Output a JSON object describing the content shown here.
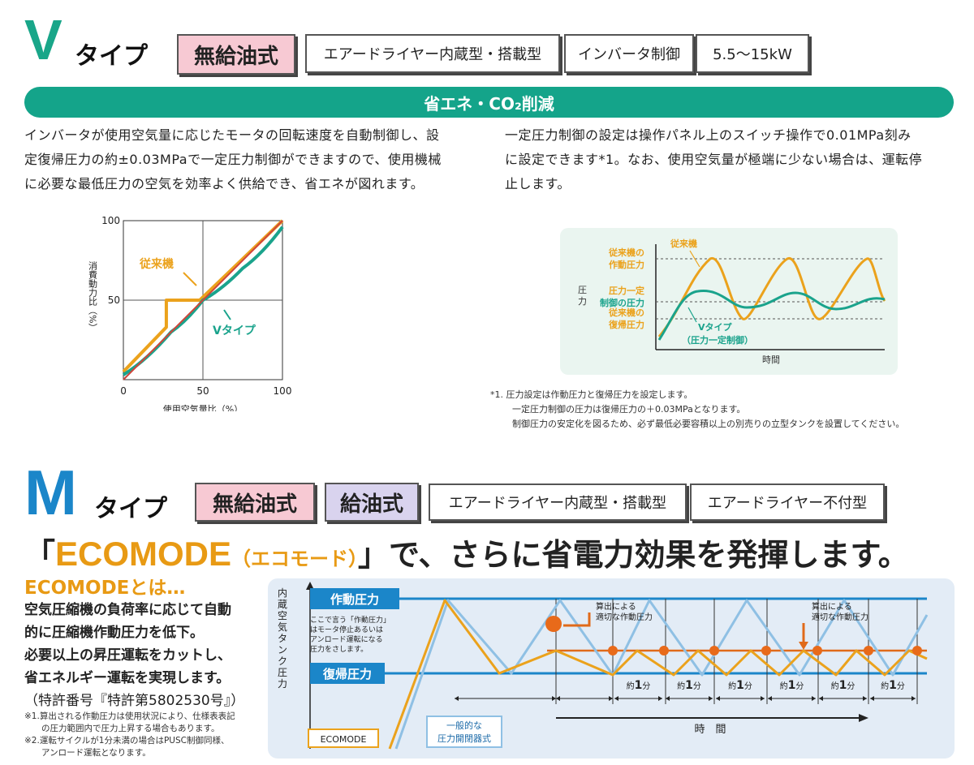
{
  "vtype": {
    "letter": "V",
    "suffix": "タイプ",
    "tags": [
      "無給油式",
      "エアードライヤー内蔵型・搭載型",
      "インバータ制御",
      "5.5〜15kW"
    ],
    "banner": "省エネ・CO₂削減",
    "para_left": [
      "インバータが使用空気量に応じたモータの回転速度を自動制御し、設",
      "定復帰圧力の約±0.03MPaで一定圧力制御ができますので、使用機械",
      "に必要な最低圧力の空気を効率よく供給でき、省エネが図れます。"
    ],
    "para_right": [
      "一定圧力制御の設定は操作パネル上のスイッチ操作で0.01MPa刻み",
      "に設定できます*1。なお、使用空気量が極端に少ない場合は、運転停",
      "止します。"
    ],
    "notes": [
      "*1. 圧力設定は作動圧力と復帰圧力を設定します。",
      "一定圧力制御の圧力は復帰圧力の＋0.03MPaとなります。",
      "制御圧力の安定化を図るため、必ず最低必要容積以上の別売りの立型タンクを設置してください。"
    ]
  },
  "chart_data": [
    {
      "type": "line",
      "xlabel": "使用空気量比（%）",
      "ylabel": "消費動力比（%）",
      "xlim": [
        0,
        100
      ],
      "ylim": [
        0,
        100
      ],
      "xticks": [
        "0",
        "50",
        "100"
      ],
      "yticks": [
        "100",
        "50"
      ],
      "series": [
        {
          "name": "従来機",
          "color": "#eba21c",
          "x": [
            0,
            27,
            27,
            48,
            100
          ],
          "y": [
            5,
            33,
            50,
            50,
            100
          ]
        },
        {
          "name": "Vタイプ",
          "color": "#1aa38c",
          "x": [
            0,
            30,
            50,
            75,
            100
          ],
          "y": [
            3,
            30,
            50,
            70,
            96
          ]
        },
        {
          "name": "",
          "color": "#d0453b",
          "x": [
            0,
            100
          ],
          "y": [
            0,
            100
          ]
        }
      ]
    },
    {
      "type": "line",
      "xlabel": "時間",
      "ylabel": "圧力",
      "levels": [
        "従来機の作動圧力",
        "圧力一定制御の圧力",
        "従来機の復帰圧力"
      ],
      "series": [
        {
          "name": "従来機",
          "color": "#eba21c"
        },
        {
          "name": "Vタイプ（圧力一定制御）",
          "color": "#1aa38c"
        }
      ]
    }
  ],
  "graph2": {
    "axis_label": "圧力",
    "level_top": [
      "従来機の",
      "作動圧力"
    ],
    "level_mid": [
      "圧力一定",
      "制御の圧力"
    ],
    "level_bot": [
      "従来機の",
      "復帰圧力"
    ],
    "series_conv": "従来機",
    "series_v": [
      "Vタイプ",
      "（圧力一定制御）"
    ],
    "xlabel": "時間"
  },
  "mtype": {
    "letter": "M",
    "suffix": "タイプ",
    "tags": [
      "無給油式",
      "給油式",
      "エアードライヤー内蔵型・搭載型",
      "エアードライヤー不付型"
    ],
    "headline_pre": "「",
    "headline_eco": "ECOMODE",
    "headline_eco_sub": "（エコモード）",
    "headline_post": "」で、さらに省電力効果を発揮します。",
    "eco_head": "ECOMODEとは…",
    "eco_para": [
      "空気圧縮機の負荷率に応じて自動",
      "的に圧縮機作動圧力を低下。",
      "必要以上の昇圧運転をカットし、",
      "省エネルギー運転を実現します。",
      "（特許番号『特許第5802530号』）"
    ],
    "eco_notes": [
      "※1.算出される作動圧力は使用状況により、仕様表表記",
      "　　の圧力範囲内で圧力上昇する場合もあります。",
      "※2.運転サイクルが1分未満の場合はPUSC制御同様、",
      "　　アンロード運転となります。"
    ]
  },
  "graph3": {
    "yaxis": "内蔵空気タンク圧力",
    "work_label": "作動圧力",
    "return_label": "復帰圧力",
    "work_note": [
      "ここで言う「作動圧力」",
      "はモータ停止あるいは",
      "アンロード運転になる",
      "圧力をさします。"
    ],
    "calc1": [
      "算出による",
      "適切な作動圧力"
    ],
    "calc2": [
      "算出による",
      "適切な作動圧力"
    ],
    "interval_pre": "約",
    "interval_num": "1",
    "interval_unit": "分",
    "xlabel": "時　間",
    "legend_eco": "ECOMODE",
    "legend_general": [
      "一般的な",
      "圧力開閉器式"
    ]
  }
}
